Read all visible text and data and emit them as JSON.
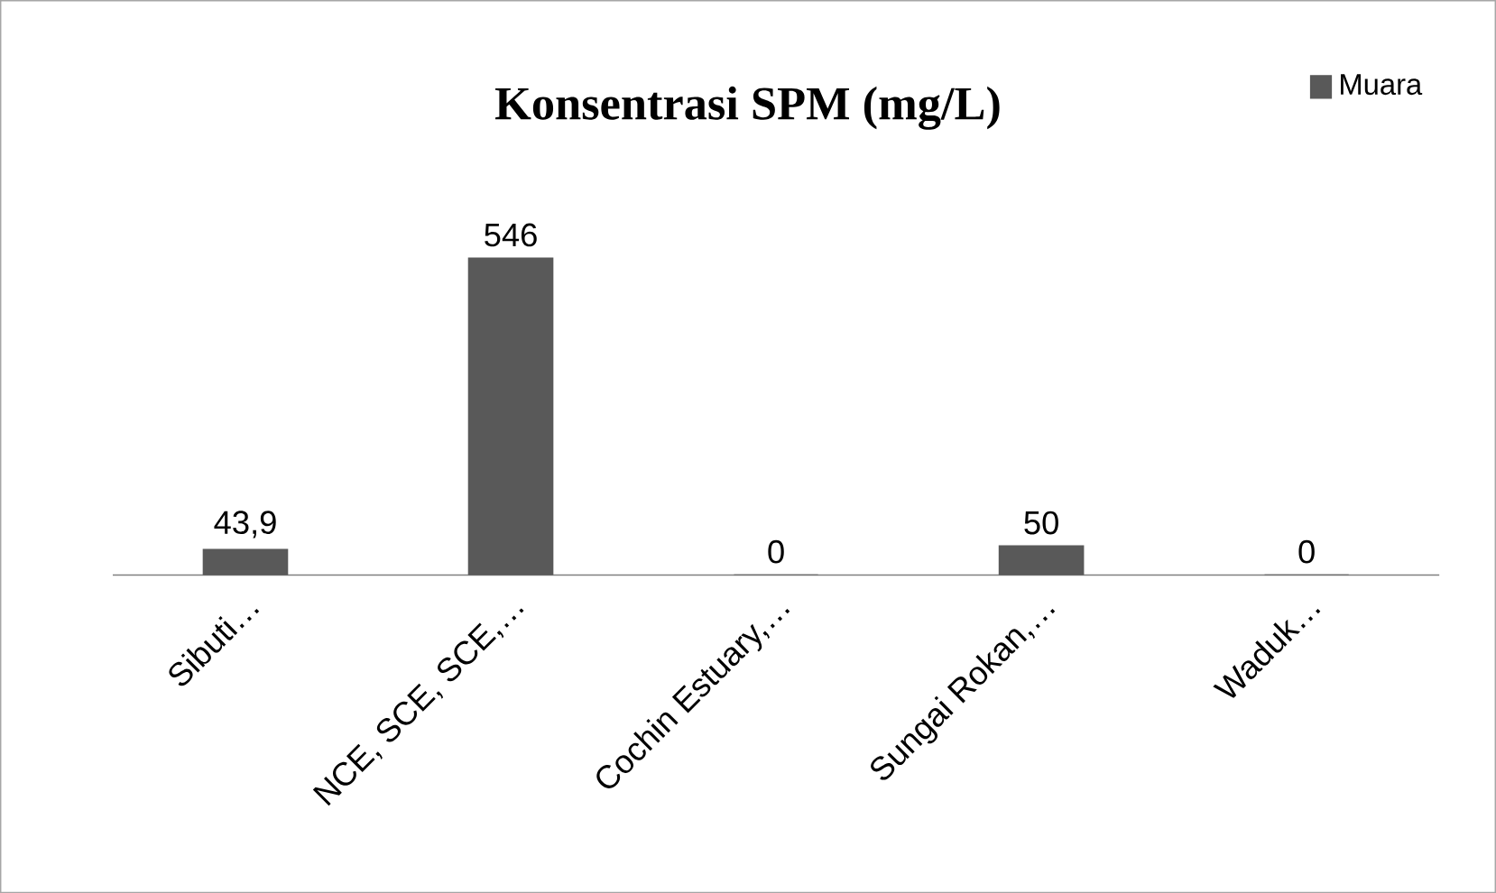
{
  "chart_data": {
    "type": "bar",
    "title": "Konsentrasi SPM (mg/L)",
    "categories": [
      "Sibuti…",
      "NCE, SCE, SCE,…",
      "Cochin Estuary,…",
      "Sungai Rokan,…",
      "Waduk…"
    ],
    "series": [
      {
        "name": "Muara",
        "color": "#595959",
        "values": [
          43.9,
          546,
          0,
          50,
          0
        ],
        "value_labels": [
          "43,9",
          "546",
          "0",
          "50",
          "0"
        ]
      }
    ],
    "legend": "top right",
    "grid": false
  }
}
